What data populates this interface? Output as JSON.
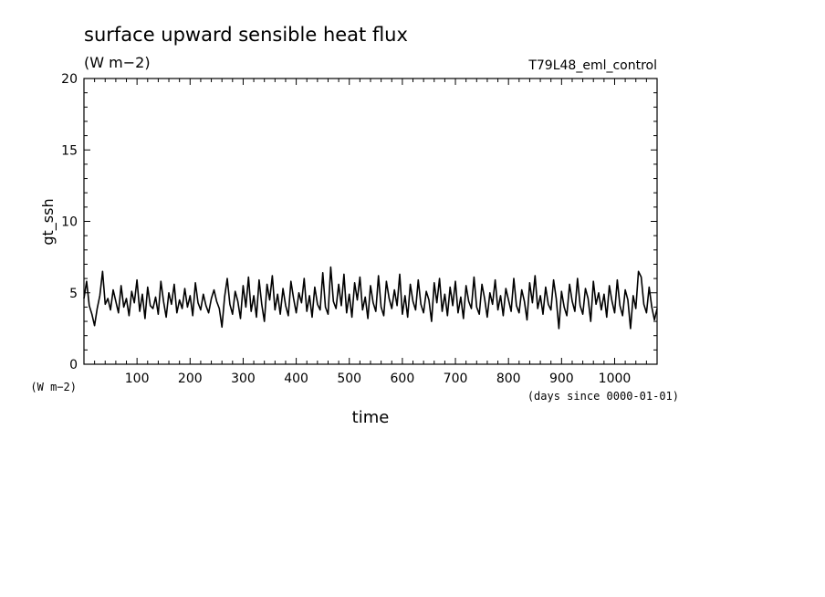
{
  "chart_data": {
    "type": "line",
    "title": "surface upward sensible heat flux",
    "units": "(W m−2)",
    "run_label": "T79L48_eml_control",
    "ylabel": "gt_ssh",
    "y_units": "(W m−2)",
    "xlabel": "time",
    "x_units": "(days since 0000-01-01)",
    "xlim": [
      0,
      1080
    ],
    "ylim": [
      0,
      20
    ],
    "x_ticks": [
      100,
      200,
      300,
      400,
      500,
      600,
      700,
      800,
      900,
      1000
    ],
    "y_ticks": [
      0,
      5,
      10,
      15,
      20
    ],
    "grid": false,
    "series": [
      {
        "values": [
          [
            0,
            4.6
          ],
          [
            5,
            5.8
          ],
          [
            10,
            4.1
          ],
          [
            15,
            3.5
          ],
          [
            20,
            2.7
          ],
          [
            25,
            3.9
          ],
          [
            30,
            4.8
          ],
          [
            35,
            6.5
          ],
          [
            40,
            4.2
          ],
          [
            45,
            4.6
          ],
          [
            50,
            3.8
          ],
          [
            55,
            5.2
          ],
          [
            60,
            4.4
          ],
          [
            65,
            3.6
          ],
          [
            70,
            5.5
          ],
          [
            75,
            4.0
          ],
          [
            80,
            4.6
          ],
          [
            85,
            3.4
          ],
          [
            90,
            5.1
          ],
          [
            95,
            4.3
          ],
          [
            100,
            5.9
          ],
          [
            105,
            3.7
          ],
          [
            110,
            4.9
          ],
          [
            115,
            3.2
          ],
          [
            120,
            5.4
          ],
          [
            125,
            4.1
          ],
          [
            130,
            3.9
          ],
          [
            135,
            4.7
          ],
          [
            140,
            3.5
          ],
          [
            145,
            5.8
          ],
          [
            150,
            4.4
          ],
          [
            155,
            3.3
          ],
          [
            160,
            5.0
          ],
          [
            165,
            4.2
          ],
          [
            170,
            5.6
          ],
          [
            175,
            3.6
          ],
          [
            180,
            4.5
          ],
          [
            185,
            3.9
          ],
          [
            190,
            5.3
          ],
          [
            195,
            4.0
          ],
          [
            200,
            4.8
          ],
          [
            205,
            3.4
          ],
          [
            210,
            5.7
          ],
          [
            215,
            4.3
          ],
          [
            220,
            3.8
          ],
          [
            225,
            4.9
          ],
          [
            230,
            4.1
          ],
          [
            235,
            3.6
          ],
          [
            240,
            4.6
          ],
          [
            245,
            5.2
          ],
          [
            250,
            4.4
          ],
          [
            255,
            3.9
          ],
          [
            260,
            2.6
          ],
          [
            265,
            4.7
          ],
          [
            270,
            6.0
          ],
          [
            275,
            4.2
          ],
          [
            280,
            3.5
          ],
          [
            285,
            5.1
          ],
          [
            290,
            4.4
          ],
          [
            295,
            3.2
          ],
          [
            300,
            5.5
          ],
          [
            305,
            4.0
          ],
          [
            310,
            6.1
          ],
          [
            315,
            3.7
          ],
          [
            320,
            4.8
          ],
          [
            325,
            3.3
          ],
          [
            330,
            5.9
          ],
          [
            335,
            4.2
          ],
          [
            340,
            3.0
          ],
          [
            345,
            5.6
          ],
          [
            350,
            4.5
          ],
          [
            355,
            6.2
          ],
          [
            360,
            3.8
          ],
          [
            365,
            4.9
          ],
          [
            370,
            3.5
          ],
          [
            375,
            5.3
          ],
          [
            380,
            4.1
          ],
          [
            385,
            3.4
          ],
          [
            390,
            5.8
          ],
          [
            395,
            4.6
          ],
          [
            400,
            3.6
          ],
          [
            405,
            5.0
          ],
          [
            410,
            4.3
          ],
          [
            415,
            6.0
          ],
          [
            420,
            3.7
          ],
          [
            425,
            4.8
          ],
          [
            430,
            3.3
          ],
          [
            435,
            5.4
          ],
          [
            440,
            4.2
          ],
          [
            445,
            3.8
          ],
          [
            450,
            6.4
          ],
          [
            455,
            4.0
          ],
          [
            460,
            3.5
          ],
          [
            465,
            6.8
          ],
          [
            470,
            4.4
          ],
          [
            475,
            3.9
          ],
          [
            480,
            5.6
          ],
          [
            485,
            4.1
          ],
          [
            490,
            6.3
          ],
          [
            495,
            3.6
          ],
          [
            500,
            4.9
          ],
          [
            505,
            3.3
          ],
          [
            510,
            5.7
          ],
          [
            515,
            4.5
          ],
          [
            520,
            6.1
          ],
          [
            525,
            3.8
          ],
          [
            530,
            4.7
          ],
          [
            535,
            3.2
          ],
          [
            540,
            5.5
          ],
          [
            545,
            4.3
          ],
          [
            550,
            3.7
          ],
          [
            555,
            6.2
          ],
          [
            560,
            4.0
          ],
          [
            565,
            3.4
          ],
          [
            570,
            5.8
          ],
          [
            575,
            4.6
          ],
          [
            580,
            3.9
          ],
          [
            585,
            5.2
          ],
          [
            590,
            4.1
          ],
          [
            595,
            6.3
          ],
          [
            600,
            3.5
          ],
          [
            605,
            4.8
          ],
          [
            610,
            3.3
          ],
          [
            615,
            5.6
          ],
          [
            620,
            4.4
          ],
          [
            625,
            3.8
          ],
          [
            630,
            5.9
          ],
          [
            635,
            4.2
          ],
          [
            640,
            3.6
          ],
          [
            645,
            5.1
          ],
          [
            650,
            4.5
          ],
          [
            655,
            3.0
          ],
          [
            660,
            5.7
          ],
          [
            665,
            4.3
          ],
          [
            670,
            6.0
          ],
          [
            675,
            3.7
          ],
          [
            680,
            4.9
          ],
          [
            685,
            3.4
          ],
          [
            690,
            5.4
          ],
          [
            695,
            4.1
          ],
          [
            700,
            5.8
          ],
          [
            705,
            3.6
          ],
          [
            710,
            4.7
          ],
          [
            715,
            3.2
          ],
          [
            720,
            5.5
          ],
          [
            725,
            4.4
          ],
          [
            730,
            3.9
          ],
          [
            735,
            6.1
          ],
          [
            740,
            4.0
          ],
          [
            745,
            3.5
          ],
          [
            750,
            5.6
          ],
          [
            755,
            4.6
          ],
          [
            760,
            3.3
          ],
          [
            765,
            5.0
          ],
          [
            770,
            4.2
          ],
          [
            775,
            5.9
          ],
          [
            780,
            3.8
          ],
          [
            785,
            4.8
          ],
          [
            790,
            3.4
          ],
          [
            795,
            5.3
          ],
          [
            800,
            4.5
          ],
          [
            805,
            3.7
          ],
          [
            810,
            6.0
          ],
          [
            815,
            4.1
          ],
          [
            820,
            3.6
          ],
          [
            825,
            5.2
          ],
          [
            830,
            4.4
          ],
          [
            835,
            3.1
          ],
          [
            840,
            5.7
          ],
          [
            845,
            4.3
          ],
          [
            850,
            6.2
          ],
          [
            855,
            3.9
          ],
          [
            860,
            4.8
          ],
          [
            865,
            3.5
          ],
          [
            870,
            5.4
          ],
          [
            875,
            4.2
          ],
          [
            880,
            3.8
          ],
          [
            885,
            5.9
          ],
          [
            890,
            4.6
          ],
          [
            895,
            2.5
          ],
          [
            900,
            5.1
          ],
          [
            905,
            4.0
          ],
          [
            910,
            3.4
          ],
          [
            915,
            5.6
          ],
          [
            920,
            4.4
          ],
          [
            925,
            3.7
          ],
          [
            930,
            6.0
          ],
          [
            935,
            4.1
          ],
          [
            940,
            3.5
          ],
          [
            945,
            5.3
          ],
          [
            950,
            4.6
          ],
          [
            955,
            3.0
          ],
          [
            960,
            5.8
          ],
          [
            965,
            4.2
          ],
          [
            970,
            5.0
          ],
          [
            975,
            3.8
          ],
          [
            980,
            4.9
          ],
          [
            985,
            3.3
          ],
          [
            990,
            5.5
          ],
          [
            995,
            4.4
          ],
          [
            1000,
            3.6
          ],
          [
            1005,
            5.9
          ],
          [
            1010,
            4.1
          ],
          [
            1015,
            3.4
          ],
          [
            1020,
            5.2
          ],
          [
            1025,
            4.5
          ],
          [
            1030,
            2.5
          ],
          [
            1035,
            4.8
          ],
          [
            1040,
            3.9
          ],
          [
            1045,
            6.5
          ],
          [
            1050,
            6.1
          ],
          [
            1055,
            4.2
          ],
          [
            1060,
            3.6
          ],
          [
            1065,
            5.4
          ],
          [
            1070,
            4.0
          ],
          [
            1075,
            3.1
          ],
          [
            1080,
            3.9
          ]
        ]
      }
    ]
  }
}
